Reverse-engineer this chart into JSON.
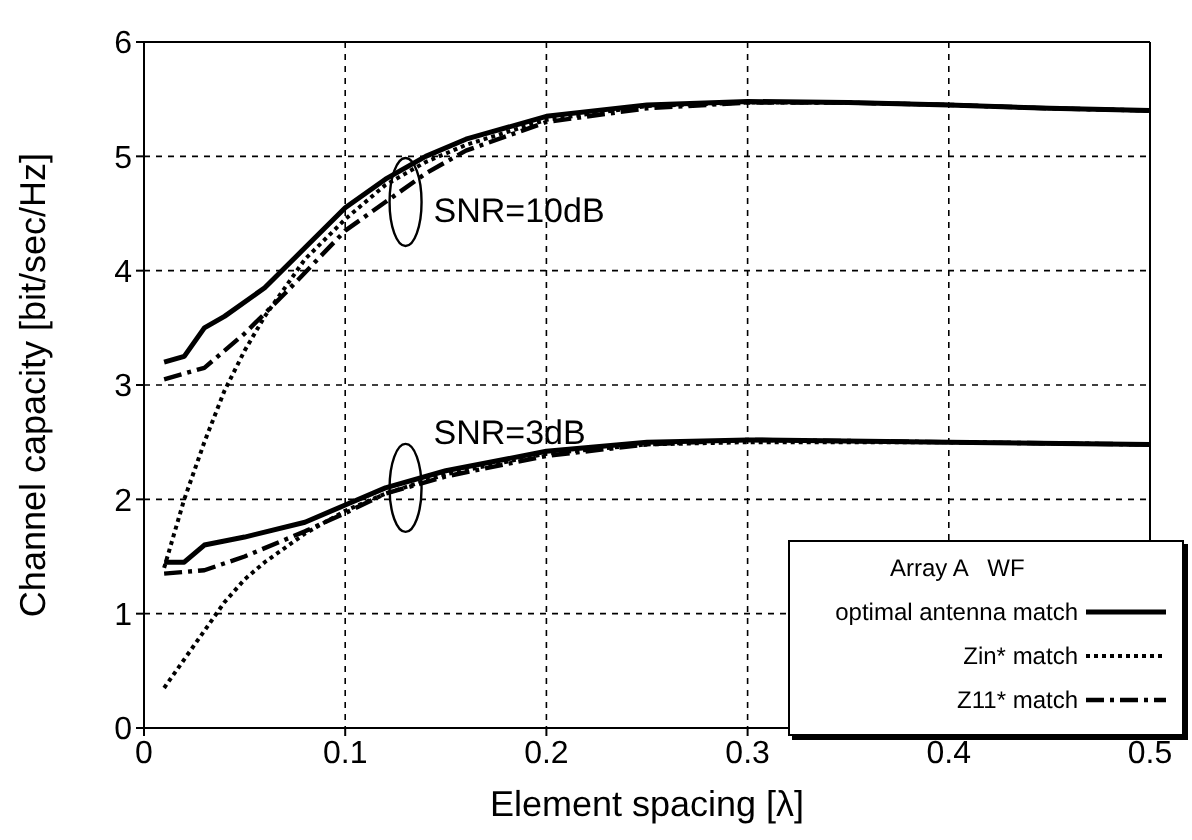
{
  "chart_data": {
    "type": "line",
    "xlabel": "Element spacing [λ]",
    "ylabel": "Channel capacity [bit/sec/Hz]",
    "legend_title": "Array A   WF",
    "xlim": [
      0,
      0.5
    ],
    "xticks": [
      0,
      0.1,
      0.2,
      0.3,
      0.4,
      0.5
    ],
    "ylim": [
      0,
      6
    ],
    "yticks": [
      0,
      1,
      2,
      3,
      4,
      5,
      6
    ],
    "grid": true,
    "legend": "bottom right",
    "marker": "none",
    "annotations": [
      {
        "text": "SNR=10dB",
        "x": 0.13,
        "y": 4.6
      },
      {
        "text": "SNR=3dB",
        "x": 0.13,
        "y": 2.1
      }
    ],
    "series": [
      {
        "name": "optimal antenna match",
        "color": "#000000",
        "line_style": "solid",
        "x": [
          0.01,
          0.02,
          0.03,
          0.04,
          0.06,
          0.08,
          0.1,
          0.12,
          0.14,
          0.16,
          0.2,
          0.25,
          0.3,
          0.35,
          0.4,
          0.45,
          0.5
        ],
        "values": [
          3.2,
          3.25,
          3.5,
          3.6,
          3.85,
          4.2,
          4.55,
          4.8,
          5.0,
          5.15,
          5.35,
          5.45,
          5.48,
          5.47,
          5.45,
          5.42,
          5.4
        ]
      },
      {
        "name": "Zin* match",
        "color": "#000000",
        "line_style": "dotted",
        "x": [
          0.01,
          0.02,
          0.03,
          0.04,
          0.05,
          0.06,
          0.07,
          0.08,
          0.1,
          0.12,
          0.14,
          0.16,
          0.2,
          0.25,
          0.3,
          0.35,
          0.4,
          0.45,
          0.5
        ],
        "values": [
          1.4,
          2.0,
          2.5,
          2.95,
          3.3,
          3.6,
          3.85,
          4.1,
          4.45,
          4.75,
          4.95,
          5.1,
          5.32,
          5.44,
          5.47,
          5.47,
          5.45,
          5.42,
          5.4
        ]
      },
      {
        "name": "Z11* match",
        "color": "#000000",
        "line_style": "dashdot",
        "x": [
          0.01,
          0.03,
          0.05,
          0.07,
          0.1,
          0.12,
          0.14,
          0.16,
          0.2,
          0.25,
          0.3,
          0.35,
          0.4,
          0.45,
          0.5
        ],
        "values": [
          3.05,
          3.15,
          3.45,
          3.8,
          4.35,
          4.6,
          4.85,
          5.05,
          5.3,
          5.42,
          5.47,
          5.47,
          5.45,
          5.42,
          5.4
        ]
      },
      {
        "color": "#000000",
        "line_style": "solid",
        "x": [
          0.01,
          0.02,
          0.03,
          0.05,
          0.08,
          0.1,
          0.12,
          0.15,
          0.2,
          0.25,
          0.3,
          0.4,
          0.5
        ],
        "values": [
          1.45,
          1.45,
          1.6,
          1.67,
          1.8,
          1.95,
          2.1,
          2.25,
          2.42,
          2.5,
          2.52,
          2.5,
          2.48
        ]
      },
      {
        "color": "#000000",
        "line_style": "dotted",
        "x": [
          0.01,
          0.02,
          0.03,
          0.04,
          0.05,
          0.06,
          0.08,
          0.1,
          0.12,
          0.15,
          0.2,
          0.25,
          0.3,
          0.4,
          0.5
        ],
        "values": [
          0.35,
          0.6,
          0.85,
          1.1,
          1.3,
          1.45,
          1.7,
          1.9,
          2.05,
          2.22,
          2.4,
          2.48,
          2.5,
          2.5,
          2.48
        ]
      },
      {
        "color": "#000000",
        "line_style": "dashdot",
        "x": [
          0.01,
          0.03,
          0.05,
          0.08,
          0.1,
          0.12,
          0.15,
          0.2,
          0.25,
          0.3,
          0.4,
          0.5
        ],
        "values": [
          1.35,
          1.38,
          1.5,
          1.72,
          1.88,
          2.05,
          2.2,
          2.38,
          2.48,
          2.52,
          2.5,
          2.48
        ]
      }
    ]
  }
}
